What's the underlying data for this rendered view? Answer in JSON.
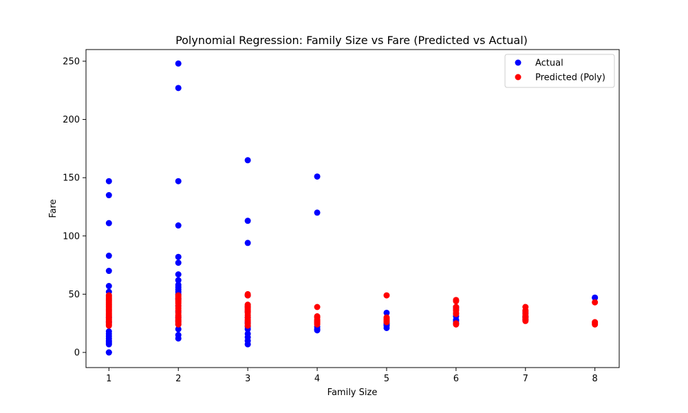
{
  "chart_data": {
    "type": "scatter",
    "title": "Polynomial Regression: Family Size vs Fare (Predicted vs Actual)",
    "xlabel": "Family Size",
    "ylabel": "Fare",
    "xlim": [
      0.67,
      8.35
    ],
    "ylim": [
      -13,
      260
    ],
    "xticks": [
      1,
      2,
      3,
      4,
      5,
      6,
      7,
      8
    ],
    "yticks": [
      0,
      50,
      100,
      150,
      200,
      250
    ],
    "grid": false,
    "legend_position": "upper-right",
    "series": [
      {
        "name": "Actual",
        "color": "#0000ff",
        "points": [
          [
            1,
            0
          ],
          [
            1,
            0
          ],
          [
            1,
            7
          ],
          [
            1,
            8
          ],
          [
            1,
            9
          ],
          [
            1,
            10
          ],
          [
            1,
            12
          ],
          [
            1,
            14
          ],
          [
            1,
            16
          ],
          [
            1,
            18
          ],
          [
            1,
            26
          ],
          [
            1,
            30
          ],
          [
            1,
            52
          ],
          [
            1,
            57
          ],
          [
            1,
            70
          ],
          [
            1,
            83
          ],
          [
            1,
            111
          ],
          [
            1,
            135
          ],
          [
            1,
            147
          ],
          [
            2,
            12
          ],
          [
            2,
            15
          ],
          [
            2,
            20
          ],
          [
            2,
            24
          ],
          [
            2,
            27
          ],
          [
            2,
            30
          ],
          [
            2,
            35
          ],
          [
            2,
            40
          ],
          [
            2,
            46
          ],
          [
            2,
            50
          ],
          [
            2,
            52
          ],
          [
            2,
            54
          ],
          [
            2,
            56
          ],
          [
            2,
            58
          ],
          [
            2,
            62
          ],
          [
            2,
            67
          ],
          [
            2,
            77
          ],
          [
            2,
            82
          ],
          [
            2,
            109
          ],
          [
            2,
            147
          ],
          [
            2,
            227
          ],
          [
            2,
            248
          ],
          [
            3,
            7
          ],
          [
            3,
            10
          ],
          [
            3,
            13
          ],
          [
            3,
            16
          ],
          [
            3,
            20
          ],
          [
            3,
            22
          ],
          [
            3,
            25
          ],
          [
            3,
            26
          ],
          [
            3,
            30
          ],
          [
            3,
            35
          ],
          [
            3,
            39
          ],
          [
            3,
            49
          ],
          [
            3,
            94
          ],
          [
            3,
            113
          ],
          [
            3,
            165
          ],
          [
            4,
            19
          ],
          [
            4,
            20
          ],
          [
            4,
            22
          ],
          [
            4,
            120
          ],
          [
            4,
            151
          ],
          [
            5,
            21
          ],
          [
            5,
            23
          ],
          [
            5,
            24
          ],
          [
            5,
            25
          ],
          [
            5,
            34
          ],
          [
            6,
            25
          ],
          [
            6,
            27
          ],
          [
            6,
            28
          ],
          [
            6,
            31
          ],
          [
            6,
            38
          ],
          [
            6,
            39
          ],
          [
            7,
            28
          ],
          [
            7,
            30
          ],
          [
            7,
            31
          ],
          [
            7,
            34
          ],
          [
            8,
            47
          ],
          [
            8,
            47
          ]
        ]
      },
      {
        "name": "Predicted (Poly)",
        "color": "#ff0000",
        "points": [
          [
            1,
            23
          ],
          [
            1,
            24
          ],
          [
            1,
            25
          ],
          [
            1,
            26
          ],
          [
            1,
            27
          ],
          [
            1,
            28
          ],
          [
            1,
            29
          ],
          [
            1,
            30
          ],
          [
            1,
            31
          ],
          [
            1,
            32
          ],
          [
            1,
            33
          ],
          [
            1,
            34
          ],
          [
            1,
            35
          ],
          [
            1,
            36
          ],
          [
            1,
            37
          ],
          [
            1,
            38
          ],
          [
            1,
            39
          ],
          [
            1,
            40
          ],
          [
            1,
            41
          ],
          [
            1,
            42
          ],
          [
            1,
            43
          ],
          [
            1,
            44
          ],
          [
            1,
            45
          ],
          [
            1,
            46
          ],
          [
            1,
            47
          ],
          [
            1,
            48
          ],
          [
            1,
            49
          ],
          [
            2,
            24
          ],
          [
            2,
            25
          ],
          [
            2,
            26
          ],
          [
            2,
            27
          ],
          [
            2,
            28
          ],
          [
            2,
            29
          ],
          [
            2,
            30
          ],
          [
            2,
            31
          ],
          [
            2,
            32
          ],
          [
            2,
            34
          ],
          [
            2,
            36
          ],
          [
            2,
            38
          ],
          [
            2,
            40
          ],
          [
            2,
            42
          ],
          [
            2,
            43
          ],
          [
            2,
            44
          ],
          [
            2,
            45
          ],
          [
            2,
            46
          ],
          [
            2,
            47
          ],
          [
            2,
            48
          ],
          [
            2,
            49
          ],
          [
            3,
            23
          ],
          [
            3,
            25
          ],
          [
            3,
            27
          ],
          [
            3,
            28
          ],
          [
            3,
            30
          ],
          [
            3,
            32
          ],
          [
            3,
            34
          ],
          [
            3,
            35
          ],
          [
            3,
            36
          ],
          [
            3,
            37
          ],
          [
            3,
            38
          ],
          [
            3,
            39
          ],
          [
            3,
            40
          ],
          [
            3,
            41
          ],
          [
            3,
            49
          ],
          [
            3,
            50
          ],
          [
            4,
            24
          ],
          [
            4,
            25
          ],
          [
            4,
            26
          ],
          [
            4,
            27
          ],
          [
            4,
            28
          ],
          [
            4,
            30
          ],
          [
            4,
            31
          ],
          [
            4,
            39
          ],
          [
            5,
            26
          ],
          [
            5,
            27
          ],
          [
            5,
            28
          ],
          [
            5,
            29
          ],
          [
            5,
            30
          ],
          [
            5,
            49
          ],
          [
            6,
            24
          ],
          [
            6,
            25
          ],
          [
            6,
            33
          ],
          [
            6,
            34
          ],
          [
            6,
            36
          ],
          [
            6,
            37
          ],
          [
            6,
            39
          ],
          [
            6,
            44
          ],
          [
            6,
            45
          ],
          [
            7,
            27
          ],
          [
            7,
            28
          ],
          [
            7,
            29
          ],
          [
            7,
            30
          ],
          [
            7,
            31
          ],
          [
            7,
            33
          ],
          [
            7,
            35
          ],
          [
            7,
            36
          ],
          [
            7,
            39
          ],
          [
            8,
            24
          ],
          [
            8,
            25
          ],
          [
            8,
            26
          ],
          [
            8,
            43
          ]
        ]
      }
    ]
  }
}
